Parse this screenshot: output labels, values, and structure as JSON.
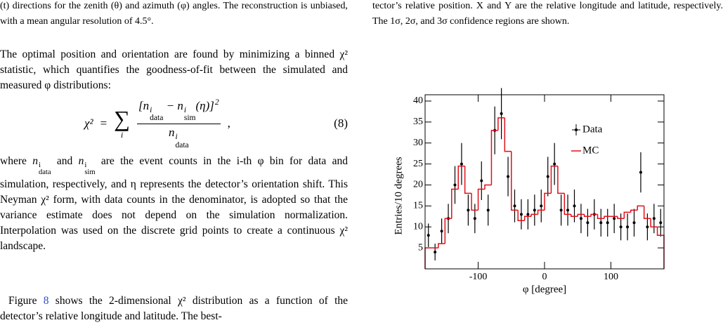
{
  "left_column": {
    "caption_fragment": "(t) directions for the zenith (θ) and azimuth (φ) angles. The reconstruction is unbiased, with a mean angular resolution of 4.5°.",
    "paragraph_1": "The optimal position and orientation are found by minimizing a binned χ² statistic, which quantifies the goodness-of-fit between the simulated and measured φ distributions:",
    "equation": {
      "lhs": "χ²",
      "relation": "=",
      "sum": "∑",
      "sum_index": "i",
      "numerator": [
        "[",
        {
          "base": "n",
          "sup": "i",
          "sub": "data"
        },
        " − ",
        {
          "base": "n",
          "sup": "i",
          "sub": "sim"
        },
        {
          "base": "(η)]",
          "sup": "2"
        }
      ],
      "denominator": [
        {
          "base": "n",
          "sup": "i",
          "sub": "data"
        }
      ],
      "trail": ",",
      "number": "(8)"
    },
    "paragraph_2": [
      "where ",
      {
        "base": "n",
        "sup": "i",
        "sub": "data"
      },
      " and ",
      {
        "base": "n",
        "sup": "i",
        "sub": "sim"
      },
      " are the event counts in the i-th φ bin for data and simulation, respectively, and η represents the detector’s orientation shift. This Neyman χ² form, with data counts in the denominator, is adopted so that the variance estimate does not depend on the simulation normalization. Interpolation was used on the discrete grid points to create a continuous χ² landscape."
    ],
    "paragraph_3": [
      "Figure ",
      {
        "link": "8"
      },
      " shows the 2-dimensional χ² distribution as a function of the detector’s relative longitude and latitude. The best-"
    ]
  },
  "right_column": {
    "caption_fragment": "tector’s relative position.  X and Y are the relative longitude and latitude, respectively.  The 1σ, 2σ, and 3σ confidence regions are shown."
  },
  "chart_data": {
    "type": "histogram",
    "xlabel": "φ [degree]",
    "ylabel": "Entries/10 degrees",
    "bins": [
      -180,
      -170,
      -160,
      -150,
      -140,
      -130,
      -120,
      -110,
      -100,
      -90,
      -80,
      -70,
      -60,
      -50,
      -40,
      -30,
      -20,
      -10,
      0,
      10,
      20,
      30,
      40,
      50,
      60,
      70,
      80,
      90,
      100,
      110,
      120,
      130,
      140,
      150,
      160,
      170,
      180
    ],
    "series": [
      {
        "name": "Data",
        "color": "#000000",
        "style": "points",
        "values": [
          8,
          4,
          9,
          12,
          20,
          25,
          14,
          12,
          21,
          14,
          33,
          37,
          22,
          15,
          13,
          13,
          14,
          15,
          22,
          25,
          14,
          14,
          15,
          12,
          11,
          13,
          11,
          11,
          12,
          10,
          10,
          11,
          23,
          10,
          12,
          11
        ],
        "errors": [
          2.8,
          2,
          3,
          3.5,
          4.5,
          5,
          3.7,
          3.5,
          4.6,
          3.7,
          5.7,
          6.1,
          4.7,
          3.9,
          3.6,
          3.6,
          3.7,
          3.9,
          4.7,
          5,
          3.7,
          3.7,
          3.9,
          3.5,
          3.3,
          3.6,
          3.3,
          3.3,
          3.5,
          3.2,
          3.2,
          3.3,
          4.8,
          3.2,
          3.5,
          3.3
        ]
      },
      {
        "name": "MC",
        "color": "#e0101a",
        "style": "step",
        "values": [
          5,
          5,
          6,
          12,
          19,
          24.5,
          18,
          14,
          19,
          20,
          33,
          36,
          28,
          14,
          11.5,
          12.5,
          13,
          14,
          18,
          24.5,
          18,
          13,
          12.5,
          13,
          12.5,
          13,
          12,
          12.5,
          12.5,
          12,
          13.5,
          14,
          15,
          12,
          10,
          8
        ]
      }
    ],
    "xlim": [
      -180,
      180
    ],
    "ylim": [
      0,
      41.5
    ],
    "xticks": [
      -100,
      0,
      100
    ],
    "yticks": [
      5,
      10,
      15,
      20,
      25,
      30,
      35,
      40
    ],
    "legend": "upper right"
  }
}
